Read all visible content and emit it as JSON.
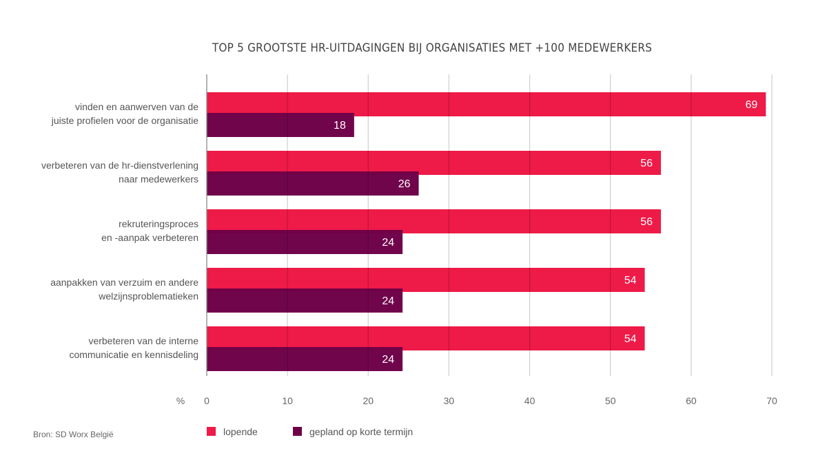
{
  "chart_data": {
    "type": "bar",
    "orientation": "horizontal",
    "title": "TOP 5 GROOTSTE HR-UITDAGINGEN BIJ ORGANISATIES MET +100 MEDEWERKERS",
    "categories": [
      [
        "vinden en aanwerven van de",
        "juiste profielen voor de organisatie"
      ],
      [
        "verbeteren van de hr-dienstverlening",
        "naar medewerkers"
      ],
      [
        "rekruteringsproces",
        "en -aanpak verbeteren"
      ],
      [
        "aanpakken van verzuim en andere",
        "welzijnsproblematieken"
      ],
      [
        "verbeteren van de interne",
        "communicatie en kennisdeling"
      ]
    ],
    "series": [
      {
        "name": "lopende",
        "color": "#ee1a47",
        "values": [
          69,
          56,
          56,
          54,
          54
        ]
      },
      {
        "name": "gepland op korte termijn",
        "color": "#6e0048",
        "values": [
          18,
          26,
          24,
          24,
          24
        ]
      }
    ],
    "xlabel": "%",
    "xlim": [
      0,
      70
    ],
    "xticks": [
      0,
      10,
      20,
      30,
      40,
      50,
      60,
      70
    ],
    "grid": true,
    "legend": "bottom",
    "source": "Bron: SD Worx België"
  }
}
